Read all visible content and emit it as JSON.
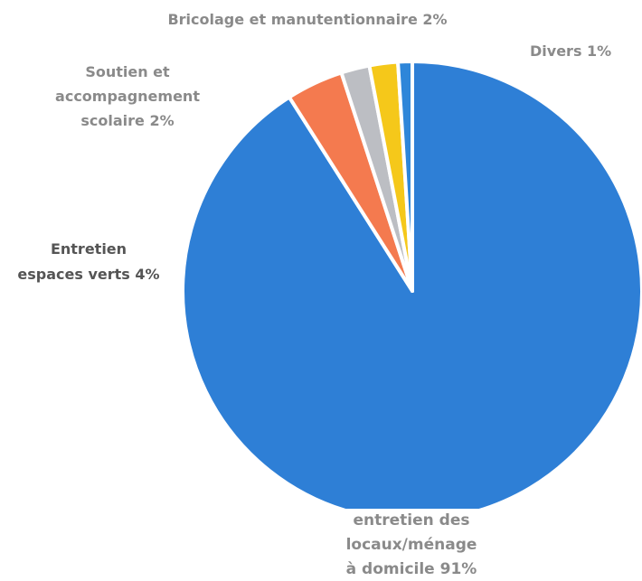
{
  "chart_data": {
    "type": "pie",
    "start_angle": "top, clockwise",
    "slices": [
      {
        "label": "entretien des\nlocaux/ménage\nà domicile 91%",
        "value": 91,
        "color": "#2e7fd6"
      },
      {
        "label": "Entretien\nespaces verts 4%",
        "value": 4,
        "color": "#f47a4f"
      },
      {
        "label": "Soutien et\naccompagnement\nscolaire 2%",
        "value": 2,
        "color": "#bcbec3"
      },
      {
        "label": "Bricolage et manutentionnaire 2%",
        "value": 2,
        "color": "#f5c81a"
      },
      {
        "label": "Divers 1%",
        "value": 1,
        "color": "#2e86d9"
      }
    ]
  }
}
